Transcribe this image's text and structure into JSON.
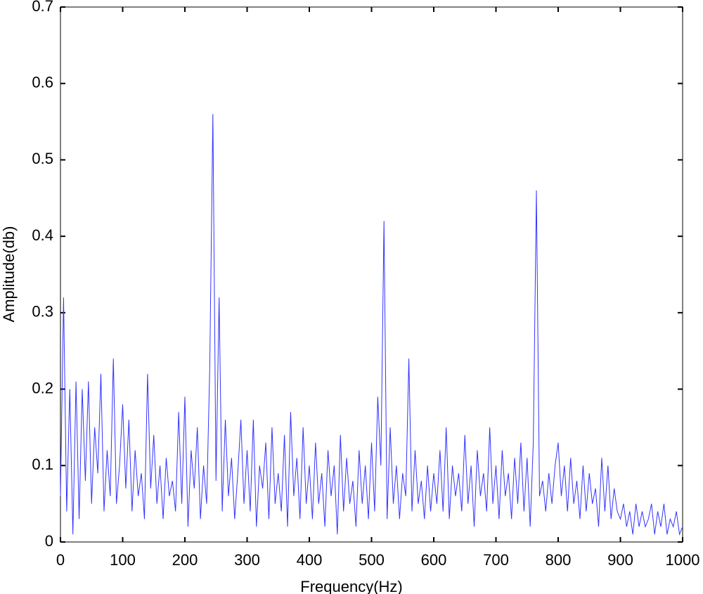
{
  "chart_data": {
    "type": "line",
    "x_label": "Frequency(Hz)",
    "y_label": "Amplitude(db)",
    "x": [
      0,
      5,
      10,
      15,
      20,
      25,
      30,
      35,
      40,
      45,
      50,
      55,
      60,
      65,
      70,
      75,
      80,
      85,
      90,
      95,
      100,
      105,
      110,
      115,
      120,
      125,
      130,
      135,
      140,
      145,
      150,
      155,
      160,
      165,
      170,
      175,
      180,
      185,
      190,
      195,
      200,
      205,
      210,
      215,
      220,
      225,
      230,
      235,
      240,
      245,
      250,
      255,
      260,
      265,
      270,
      275,
      280,
      285,
      290,
      295,
      300,
      305,
      310,
      315,
      320,
      325,
      330,
      335,
      340,
      345,
      350,
      355,
      360,
      365,
      370,
      375,
      380,
      385,
      390,
      395,
      400,
      405,
      410,
      415,
      420,
      425,
      430,
      435,
      440,
      445,
      450,
      455,
      460,
      465,
      470,
      475,
      480,
      485,
      490,
      495,
      500,
      505,
      510,
      515,
      520,
      525,
      530,
      535,
      540,
      545,
      550,
      555,
      560,
      565,
      570,
      575,
      580,
      585,
      590,
      595,
      600,
      605,
      610,
      615,
      620,
      625,
      630,
      635,
      640,
      645,
      650,
      655,
      660,
      665,
      670,
      675,
      680,
      685,
      690,
      695,
      700,
      705,
      710,
      715,
      720,
      725,
      730,
      735,
      740,
      745,
      750,
      755,
      760,
      765,
      770,
      775,
      780,
      785,
      790,
      795,
      800,
      805,
      810,
      815,
      820,
      825,
      830,
      835,
      840,
      845,
      850,
      855,
      860,
      865,
      870,
      875,
      880,
      885,
      890,
      895,
      900,
      905,
      910,
      915,
      920,
      925,
      930,
      935,
      940,
      945,
      950,
      955,
      960,
      965,
      970,
      975,
      980,
      985,
      990,
      995,
      1000
    ],
    "series": [
      {
        "color": "#3333ff",
        "values": [
          0.06,
          0.32,
          0.04,
          0.2,
          0.01,
          0.21,
          0.03,
          0.2,
          0.08,
          0.21,
          0.05,
          0.15,
          0.09,
          0.22,
          0.04,
          0.12,
          0.06,
          0.24,
          0.05,
          0.1,
          0.18,
          0.07,
          0.16,
          0.04,
          0.12,
          0.06,
          0.09,
          0.03,
          0.22,
          0.07,
          0.14,
          0.05,
          0.1,
          0.03,
          0.11,
          0.06,
          0.08,
          0.04,
          0.17,
          0.05,
          0.19,
          0.02,
          0.12,
          0.07,
          0.15,
          0.03,
          0.1,
          0.05,
          0.23,
          0.56,
          0.08,
          0.32,
          0.04,
          0.16,
          0.06,
          0.11,
          0.03,
          0.09,
          0.16,
          0.05,
          0.12,
          0.04,
          0.16,
          0.02,
          0.1,
          0.07,
          0.13,
          0.03,
          0.15,
          0.05,
          0.09,
          0.04,
          0.14,
          0.02,
          0.17,
          0.06,
          0.11,
          0.03,
          0.15,
          0.05,
          0.1,
          0.03,
          0.13,
          0.05,
          0.09,
          0.02,
          0.12,
          0.06,
          0.1,
          0.01,
          0.14,
          0.04,
          0.11,
          0.05,
          0.08,
          0.02,
          0.12,
          0.05,
          0.1,
          0.03,
          0.13,
          0.04,
          0.19,
          0.1,
          0.42,
          0.03,
          0.15,
          0.05,
          0.1,
          0.03,
          0.09,
          0.06,
          0.24,
          0.04,
          0.12,
          0.05,
          0.08,
          0.03,
          0.1,
          0.04,
          0.09,
          0.05,
          0.12,
          0.04,
          0.15,
          0.03,
          0.1,
          0.06,
          0.09,
          0.04,
          0.14,
          0.05,
          0.1,
          0.02,
          0.12,
          0.06,
          0.09,
          0.04,
          0.15,
          0.05,
          0.1,
          0.03,
          0.12,
          0.06,
          0.09,
          0.03,
          0.11,
          0.05,
          0.13,
          0.04,
          0.11,
          0.02,
          0.13,
          0.46,
          0.06,
          0.08,
          0.04,
          0.09,
          0.05,
          0.1,
          0.13,
          0.06,
          0.1,
          0.04,
          0.11,
          0.05,
          0.08,
          0.03,
          0.1,
          0.04,
          0.09,
          0.05,
          0.07,
          0.02,
          0.11,
          0.04,
          0.1,
          0.03,
          0.07,
          0.04,
          0.03,
          0.05,
          0.02,
          0.04,
          0.01,
          0.05,
          0.02,
          0.04,
          0.02,
          0.03,
          0.05,
          0.01,
          0.04,
          0.02,
          0.05,
          0.01,
          0.03,
          0.02,
          0.04,
          0.01,
          0.02
        ]
      }
    ],
    "xlim": [
      0,
      1000
    ],
    "xticks": [
      0,
      100,
      200,
      300,
      400,
      500,
      600,
      700,
      800,
      900,
      1000
    ],
    "ylim": [
      0,
      0.7
    ],
    "yticks": [
      0,
      0.1,
      0.2,
      0.3,
      0.4,
      0.5,
      0.6,
      0.7
    ],
    "grid": false
  }
}
